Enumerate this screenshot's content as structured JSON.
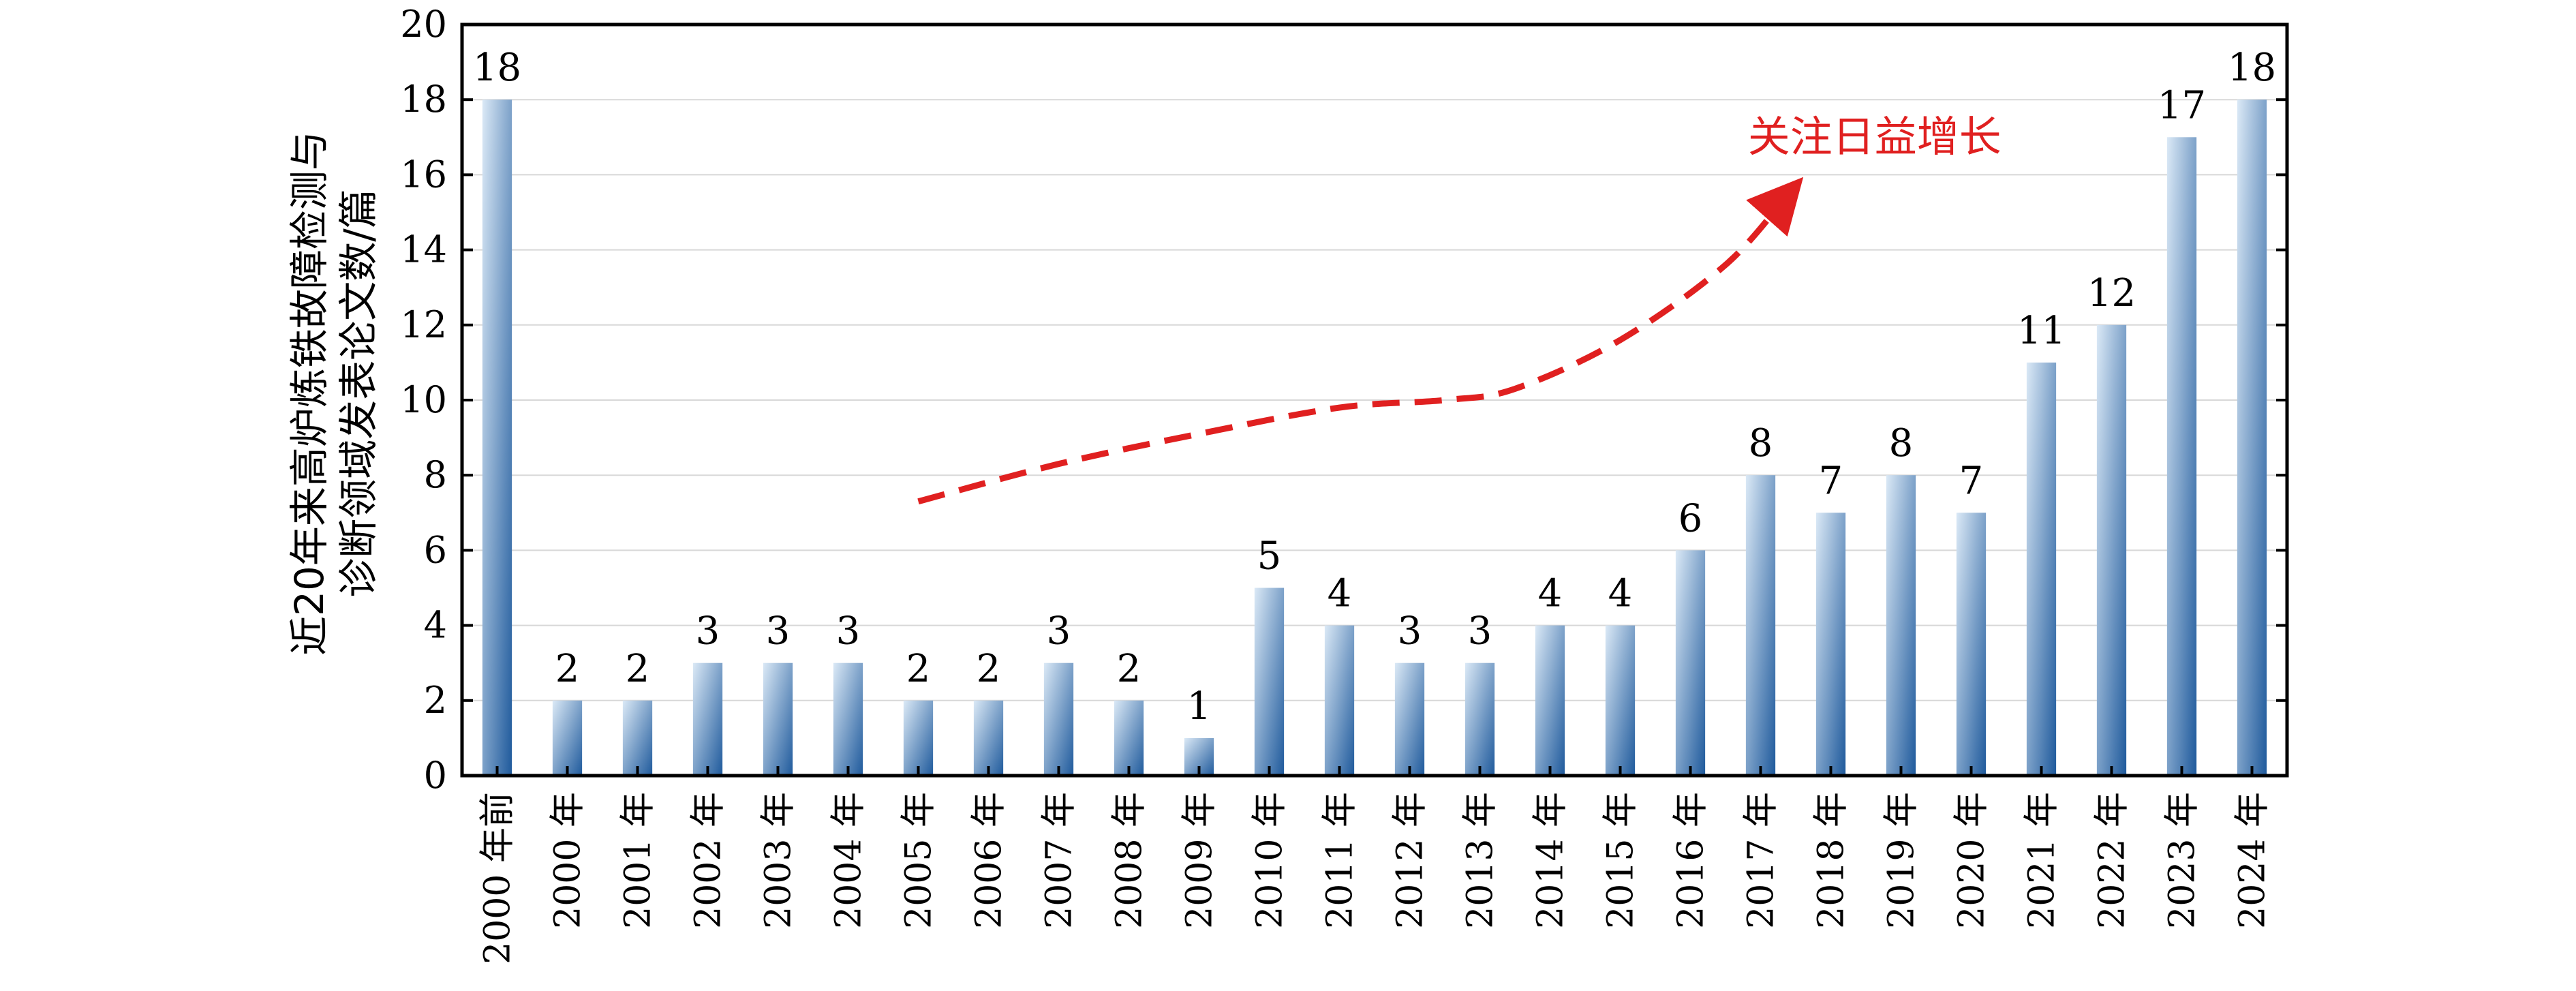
{
  "chart_data": {
    "type": "bar",
    "title": "",
    "ylabel_lines": [
      "近20年来高炉炼铁故障检测与",
      "诊断领域发表论文数/篇"
    ],
    "xlabel": "",
    "ylim": [
      0,
      20
    ],
    "yticks": [
      0,
      2,
      4,
      6,
      8,
      10,
      12,
      14,
      16,
      18,
      20
    ],
    "grid": true,
    "categories": [
      "2000 年前",
      "2000 年",
      "2001 年",
      "2002 年",
      "2003 年",
      "2004 年",
      "2005 年",
      "2006 年",
      "2007 年",
      "2008 年",
      "2009 年",
      "2010 年",
      "2011 年",
      "2012 年",
      "2013 年",
      "2014 年",
      "2015 年",
      "2016 年",
      "2017 年",
      "2018 年",
      "2019 年",
      "2020 年",
      "2021 年",
      "2022 年",
      "2023 年",
      "2024 年"
    ],
    "values": [
      18,
      2,
      2,
      3,
      3,
      3,
      2,
      2,
      3,
      2,
      1,
      5,
      4,
      3,
      3,
      4,
      4,
      6,
      8,
      7,
      8,
      7,
      11,
      12,
      17,
      18
    ],
    "annotation": {
      "text": "关注日益增长",
      "trend_points": [
        [
          6,
          7.3
        ],
        [
          8,
          8.3
        ],
        [
          10,
          9.1
        ],
        [
          12,
          9.8
        ],
        [
          13.5,
          10.0
        ],
        [
          14.5,
          10.3
        ],
        [
          16,
          11.6
        ],
        [
          17.5,
          13.6
        ],
        [
          18.4,
          15.5
        ]
      ],
      "color": "#e02020"
    },
    "bar_colors": {
      "light": "#dbe9f6",
      "dark": "#1f5a9c"
    }
  }
}
